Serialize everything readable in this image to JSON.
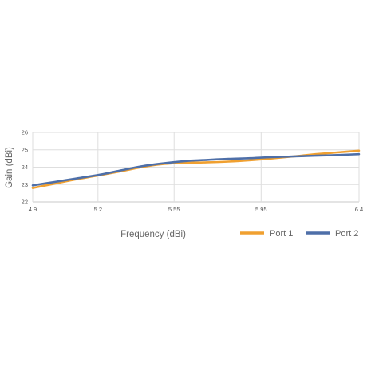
{
  "chart_data": {
    "type": "line",
    "xlabel": "Frequency (dBi)",
    "ylabel": "Gain (dBi)",
    "x_ticks": [
      "4.9",
      "5.2",
      "5.55",
      "5.95",
      "6.4"
    ],
    "y_ticks": [
      "22",
      "23",
      "24",
      "25",
      "26"
    ],
    "xlim": [
      4.9,
      6.4
    ],
    "ylim": [
      22,
      26
    ],
    "grid": true,
    "legend_position": "bottom-right",
    "series": [
      {
        "name": "Port 1",
        "color": "#F0A030",
        "x": [
          4.9,
          5.0,
          5.1,
          5.2,
          5.3,
          5.4,
          5.5,
          5.6,
          5.7,
          5.8,
          5.9,
          6.0,
          6.1,
          6.2,
          6.3,
          6.4
        ],
        "y": [
          22.8,
          23.05,
          23.3,
          23.52,
          23.75,
          24.0,
          24.18,
          24.25,
          24.28,
          24.32,
          24.4,
          24.5,
          24.62,
          24.75,
          24.85,
          24.95
        ]
      },
      {
        "name": "Port 2",
        "color": "#4E6FA8",
        "x": [
          4.9,
          5.0,
          5.1,
          5.2,
          5.3,
          5.4,
          5.5,
          5.6,
          5.7,
          5.8,
          5.9,
          6.0,
          6.1,
          6.2,
          6.3,
          6.4
        ],
        "y": [
          22.95,
          23.15,
          23.35,
          23.55,
          23.8,
          24.05,
          24.22,
          24.35,
          24.42,
          24.48,
          24.52,
          24.58,
          24.62,
          24.66,
          24.7,
          24.75
        ]
      }
    ]
  }
}
